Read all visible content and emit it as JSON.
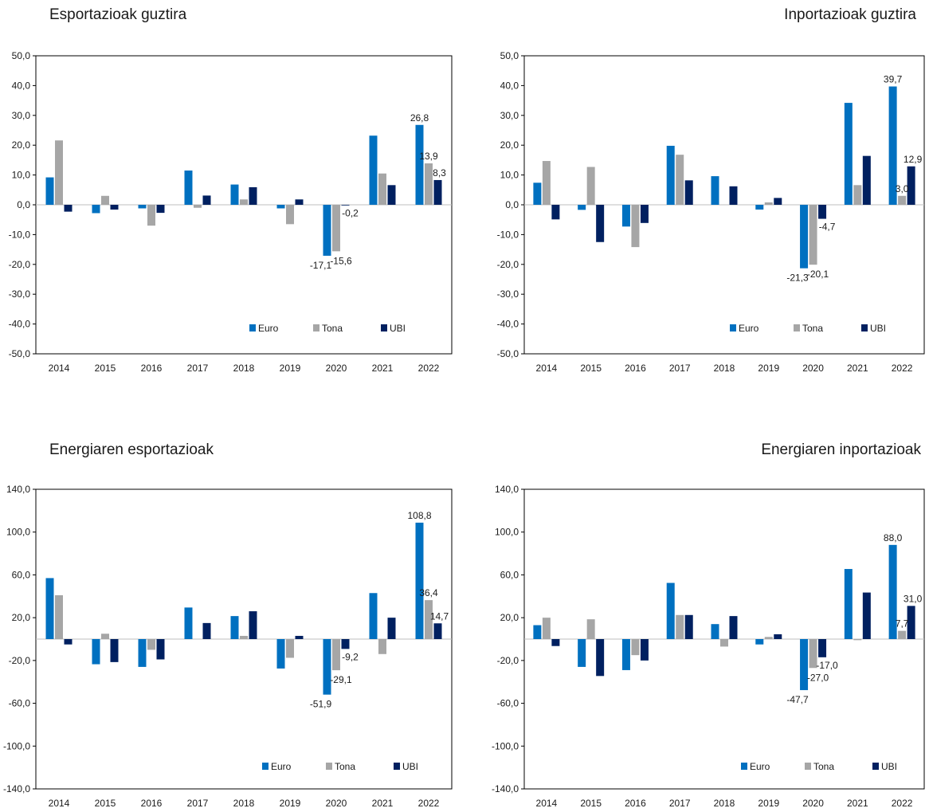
{
  "colors": {
    "euro": "#0070C0",
    "tona": "#A6A6A6",
    "ubi": "#002060",
    "frame": "#000000",
    "zero_line": "#BFBFBF"
  },
  "chart_data": [
    {
      "type": "bar",
      "title": "Esportazioak guztira",
      "categories": [
        "2014",
        "2015",
        "2016",
        "2017",
        "2018",
        "2019",
        "2020",
        "2021",
        "2022"
      ],
      "ylim": [
        -50,
        50
      ],
      "yticks": [
        "50,0",
        "40,0",
        "30,0",
        "20,0",
        "10,0",
        "0,0",
        "-10,0",
        "-20,0",
        "-30,0",
        "-40,0",
        "-50,0"
      ],
      "ytick_values": [
        50,
        40,
        30,
        20,
        10,
        0,
        -10,
        -20,
        -30,
        -40,
        -50
      ],
      "legend_position": "bottom-right",
      "series": [
        {
          "name": "Euro",
          "color_key": "euro",
          "values": [
            9.2,
            -2.8,
            -1.2,
            11.5,
            6.8,
            -1.2,
            -17.1,
            23.2,
            26.8
          ]
        },
        {
          "name": "Tona",
          "color_key": "tona",
          "values": [
            21.6,
            3.0,
            -7.0,
            -1.0,
            1.8,
            -6.5,
            -15.6,
            10.5,
            13.9
          ]
        },
        {
          "name": "UBI",
          "color_key": "ubi",
          "values": [
            -2.3,
            -1.6,
            -2.7,
            3.1,
            5.9,
            1.8,
            -0.2,
            6.6,
            8.3
          ]
        }
      ],
      "data_labels": [
        {
          "series": 0,
          "index": 6,
          "text": "-17,1"
        },
        {
          "series": 1,
          "index": 6,
          "text": "-15,6"
        },
        {
          "series": 2,
          "index": 6,
          "text": "-0,2"
        },
        {
          "series": 0,
          "index": 8,
          "text": "26,8"
        },
        {
          "series": 1,
          "index": 8,
          "text": "13,9"
        },
        {
          "series": 2,
          "index": 8,
          "text": "8,3"
        }
      ]
    },
    {
      "type": "bar",
      "title": "Inportazioak guztira",
      "categories": [
        "2014",
        "2015",
        "2016",
        "2017",
        "2018",
        "2019",
        "2020",
        "2021",
        "2022"
      ],
      "ylim": [
        -50,
        50
      ],
      "yticks": [
        "50,0",
        "40,0",
        "30,0",
        "20,0",
        "10,0",
        "0,0",
        "-10,0",
        "-20,0",
        "-30,0",
        "-40,0",
        "-50,0"
      ],
      "ytick_values": [
        50,
        40,
        30,
        20,
        10,
        0,
        -10,
        -20,
        -30,
        -40,
        -50
      ],
      "legend_position": "bottom-right",
      "series": [
        {
          "name": "Euro",
          "color_key": "euro",
          "values": [
            7.4,
            -1.7,
            -7.3,
            19.8,
            9.6,
            -1.6,
            -21.3,
            34.2,
            39.7
          ]
        },
        {
          "name": "Tona",
          "color_key": "tona",
          "values": [
            14.7,
            12.7,
            -14.2,
            16.8,
            0.0,
            0.8,
            -20.1,
            6.6,
            3.0
          ]
        },
        {
          "name": "UBI",
          "color_key": "ubi",
          "values": [
            -4.9,
            -12.5,
            -6.1,
            8.2,
            6.2,
            2.3,
            -4.7,
            16.4,
            12.9
          ]
        }
      ],
      "data_labels": [
        {
          "series": 0,
          "index": 6,
          "text": "-21,3"
        },
        {
          "series": 1,
          "index": 6,
          "text": "-20,1"
        },
        {
          "series": 2,
          "index": 6,
          "text": "-4,7"
        },
        {
          "series": 0,
          "index": 8,
          "text": "39,7"
        },
        {
          "series": 1,
          "index": 8,
          "text": "3,0"
        },
        {
          "series": 2,
          "index": 8,
          "text": "12,9"
        }
      ]
    },
    {
      "type": "bar",
      "title": "Energiaren esportazioak",
      "categories": [
        "2014",
        "2015",
        "2016",
        "2017",
        "2018",
        "2019",
        "2020",
        "2021",
        "2022"
      ],
      "ylim": [
        -140,
        140
      ],
      "yticks": [
        "140,0",
        "100,0",
        "60,0",
        "20,0",
        "-20,0",
        "-60,0",
        "-100,0",
        "-140,0"
      ],
      "ytick_values": [
        140,
        100,
        60,
        20,
        -20,
        -60,
        -100,
        -140
      ],
      "legend_position": "bottom-right",
      "series": [
        {
          "name": "Euro",
          "color_key": "euro",
          "values": [
            57.0,
            -23.5,
            -26.0,
            29.5,
            21.5,
            -27.5,
            -51.9,
            43.0,
            108.8
          ]
        },
        {
          "name": "Tona",
          "color_key": "tona",
          "values": [
            41.0,
            5.0,
            -10.0,
            0.0,
            3.0,
            -17.5,
            -29.1,
            -14.0,
            36.4
          ]
        },
        {
          "name": "UBI",
          "color_key": "ubi",
          "values": [
            -5.0,
            -21.5,
            -19.0,
            15.0,
            26.0,
            3.0,
            -9.2,
            20.0,
            14.7
          ]
        }
      ],
      "data_labels": [
        {
          "series": 0,
          "index": 6,
          "text": "-51,9"
        },
        {
          "series": 1,
          "index": 6,
          "text": "-29,1"
        },
        {
          "series": 2,
          "index": 6,
          "text": "-9,2"
        },
        {
          "series": 0,
          "index": 8,
          "text": "108,8"
        },
        {
          "series": 1,
          "index": 8,
          "text": "36,4"
        },
        {
          "series": 2,
          "index": 8,
          "text": "14,7"
        }
      ]
    },
    {
      "type": "bar",
      "title": "Energiaren inportazioak",
      "categories": [
        "2014",
        "2015",
        "2016",
        "2017",
        "2018",
        "2019",
        "2020",
        "2021",
        "2022"
      ],
      "ylim": [
        -140,
        140
      ],
      "yticks": [
        "140,0",
        "100,0",
        "60,0",
        "20,0",
        "-20,0",
        "-60,0",
        "-100,0",
        "-140,0"
      ],
      "ytick_values": [
        140,
        100,
        60,
        20,
        -20,
        -60,
        -100,
        -140
      ],
      "legend_position": "bottom-right",
      "series": [
        {
          "name": "Euro",
          "color_key": "euro",
          "values": [
            13.0,
            -26.0,
            -29.0,
            52.5,
            14.0,
            -5.0,
            -47.7,
            65.5,
            88.0
          ]
        },
        {
          "name": "Tona",
          "color_key": "tona",
          "values": [
            20.0,
            18.5,
            -15.0,
            22.5,
            -7.0,
            2.0,
            -27.0,
            -1.0,
            7.7
          ]
        },
        {
          "name": "UBI",
          "color_key": "ubi",
          "values": [
            -6.5,
            -34.5,
            -20.0,
            22.5,
            21.5,
            4.5,
            -17.0,
            43.5,
            31.0
          ]
        }
      ],
      "data_labels": [
        {
          "series": 0,
          "index": 6,
          "text": "-47,7"
        },
        {
          "series": 1,
          "index": 6,
          "text": "-27,0"
        },
        {
          "series": 2,
          "index": 6,
          "text": "-17,0"
        },
        {
          "series": 0,
          "index": 8,
          "text": "88,0"
        },
        {
          "series": 1,
          "index": 8,
          "text": "7,7"
        },
        {
          "series": 2,
          "index": 8,
          "text": "31,0"
        }
      ]
    }
  ]
}
